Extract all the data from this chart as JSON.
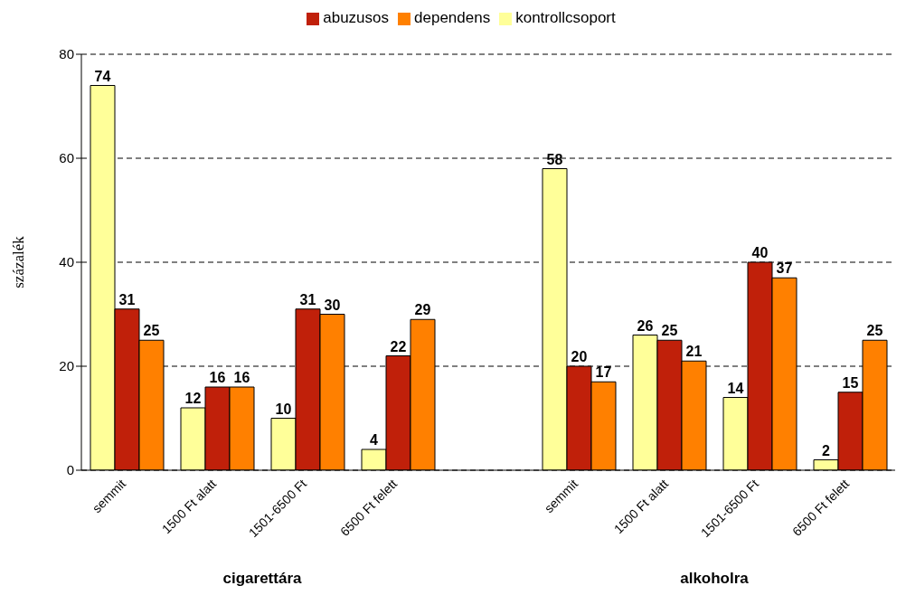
{
  "chart_data": {
    "type": "bar",
    "ylabel": "százalék",
    "categories": [
      "semmit",
      "1500 Ft alatt",
      "1501-6500 Ft",
      "6500 Ft felett",
      null,
      "semmit",
      "1500 Ft alatt",
      "1501-6500 Ft",
      "6500 Ft felett"
    ],
    "series": [
      {
        "name": "kontrollcsoport",
        "color": "#ffff99",
        "values": [
          74,
          12,
          10,
          4,
          null,
          58,
          26,
          14,
          2
        ]
      },
      {
        "name": "abuzusos",
        "color": "#c0200a",
        "values": [
          31,
          16,
          31,
          22,
          null,
          20,
          25,
          40,
          15
        ]
      },
      {
        "name": "dependens",
        "color": "#ff8000",
        "values": [
          25,
          16,
          30,
          29,
          null,
          17,
          21,
          37,
          25
        ]
      }
    ],
    "ylim": [
      0,
      80
    ],
    "yticks": [
      0,
      20,
      40,
      60,
      80
    ],
    "grid": "y",
    "legend": "top",
    "data_labels": true,
    "annotations": [
      "cigarettára",
      "alkoholra"
    ]
  }
}
